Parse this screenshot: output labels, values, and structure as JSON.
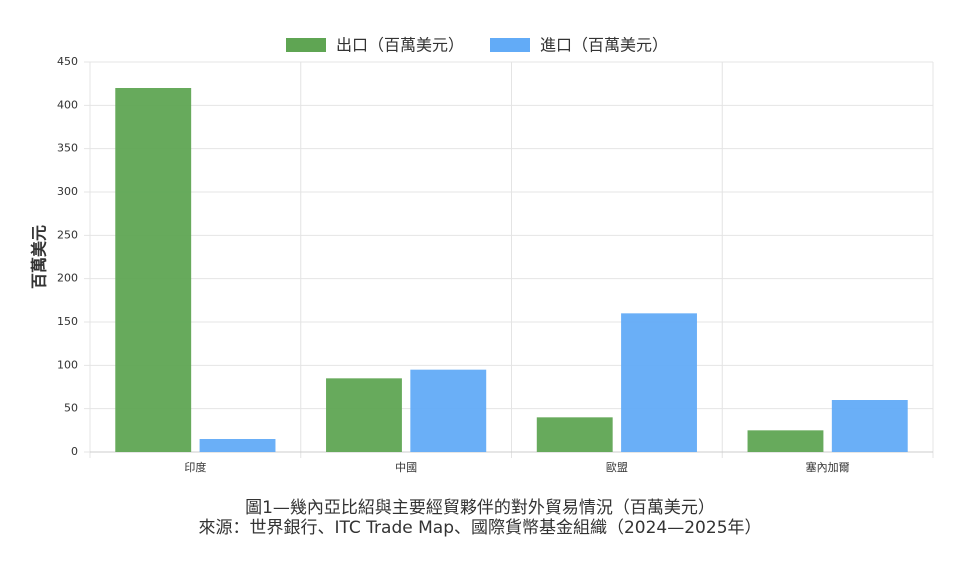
{
  "chart_data": {
    "type": "bar",
    "title": "圖1—幾內亞比紹與主要經貿夥伴的對外貿易情況（百萬美元）",
    "source": "來源：世界銀行、ITC Trade Map、國際貨幣基金組織（2024—2025年）",
    "y_label": "百萬美元",
    "categories": [
      "印度",
      "中國",
      "歐盟",
      "塞內加爾"
    ],
    "series": [
      {
        "name": "出口（百萬美元）",
        "color": "#5fa553",
        "values": [
          420,
          85,
          40,
          25
        ]
      },
      {
        "name": "進口（百萬美元）",
        "color": "#62abf7",
        "values": [
          15,
          95,
          160,
          60
        ]
      }
    ],
    "ylim": [
      0,
      450
    ],
    "yticks": [
      0,
      50,
      100,
      150,
      200,
      250,
      300,
      350,
      400,
      450
    ],
    "grid": true,
    "legend": "top"
  }
}
